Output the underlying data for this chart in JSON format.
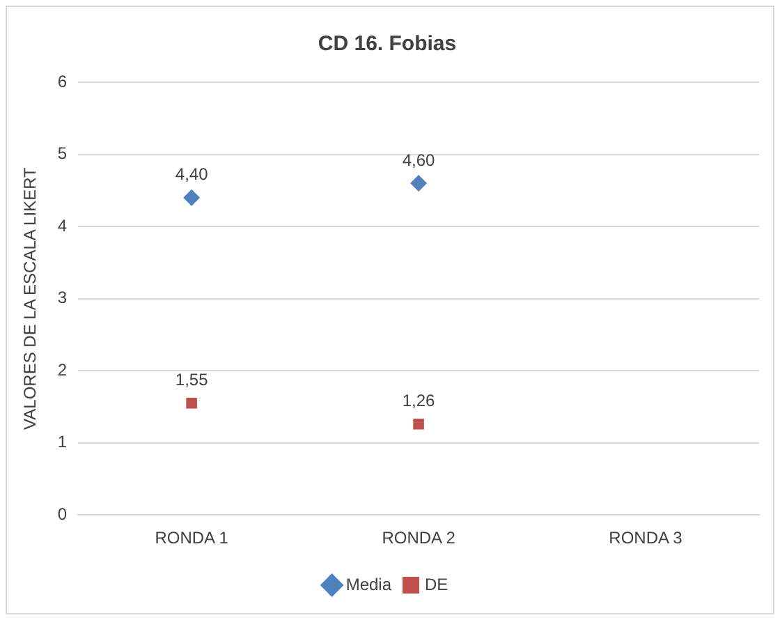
{
  "chart_data": {
    "type": "scatter",
    "title": "CD 16. Fobias",
    "ylabel": "VALORES DE LA ESCALA LIKERT",
    "categories": [
      "RONDA 1",
      "RONDA 2",
      "RONDA 3"
    ],
    "series": [
      {
        "name": "Media",
        "color": "#4f81bd",
        "marker": "diamond",
        "values": [
          4.4,
          4.6,
          null
        ],
        "value_labels": [
          "4,40",
          "4,60",
          null
        ]
      },
      {
        "name": "DE",
        "color": "#c0504d",
        "marker": "square",
        "values": [
          1.55,
          1.26,
          null
        ],
        "value_labels": [
          "1,55",
          "1,26",
          null
        ]
      }
    ],
    "ylim": [
      0,
      6
    ],
    "yticks": [
      0,
      1,
      2,
      3,
      4,
      5,
      6
    ],
    "grid": "y",
    "legend": "bottom"
  }
}
